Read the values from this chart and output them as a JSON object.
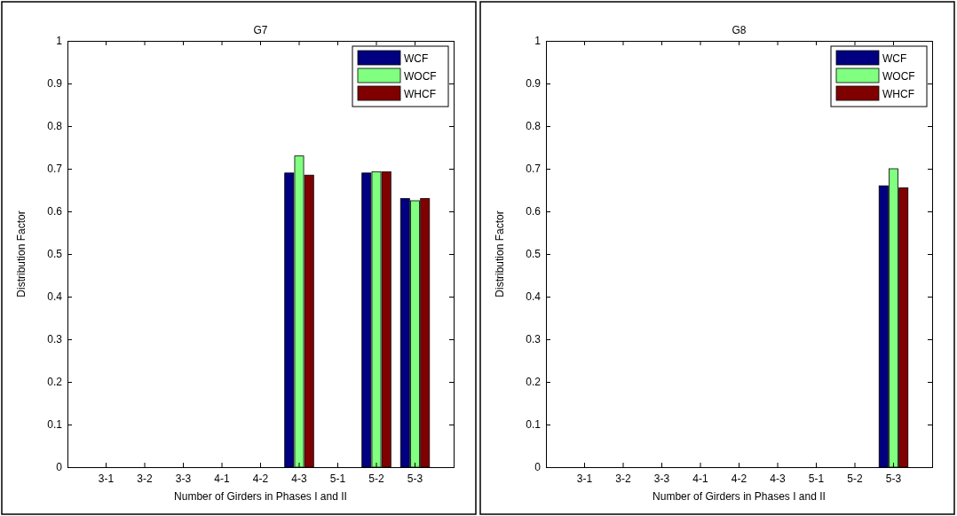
{
  "chart_data": [
    {
      "type": "bar",
      "title": "G7",
      "xlabel": "Number of Girders in Phases I and II",
      "ylabel": "Distribution Factor",
      "categories": [
        "3-1",
        "3-2",
        "3-3",
        "4-1",
        "4-2",
        "4-3",
        "5-1",
        "5-2",
        "5-3"
      ],
      "series": [
        {
          "name": "WCF",
          "color": "#000080",
          "values": [
            null,
            null,
            null,
            null,
            null,
            0.69,
            null,
            0.69,
            0.63
          ]
        },
        {
          "name": "WOCF",
          "color": "#80ff80",
          "values": [
            null,
            null,
            null,
            null,
            null,
            0.73,
            null,
            0.693,
            0.625
          ]
        },
        {
          "name": "WHCF",
          "color": "#800000",
          "values": [
            null,
            null,
            null,
            null,
            null,
            0.685,
            null,
            0.693,
            0.63
          ]
        }
      ],
      "ylim": [
        0,
        1
      ],
      "yticks": [
        0,
        0.1,
        0.2,
        0.3,
        0.4,
        0.5,
        0.6,
        0.7,
        0.8,
        0.9,
        1
      ],
      "legend": "top right",
      "grid": false
    },
    {
      "type": "bar",
      "title": "G8",
      "xlabel": "Number of Girders in Phases I and II",
      "ylabel": "Distribution Factor",
      "categories": [
        "3-1",
        "3-2",
        "3-3",
        "4-1",
        "4-2",
        "4-3",
        "5-1",
        "5-2",
        "5-3"
      ],
      "series": [
        {
          "name": "WCF",
          "color": "#000080",
          "values": [
            null,
            null,
            null,
            null,
            null,
            null,
            null,
            null,
            0.66
          ]
        },
        {
          "name": "WOCF",
          "color": "#80ff80",
          "values": [
            null,
            null,
            null,
            null,
            null,
            null,
            null,
            null,
            0.7
          ]
        },
        {
          "name": "WHCF",
          "color": "#800000",
          "values": [
            null,
            null,
            null,
            null,
            null,
            null,
            null,
            null,
            0.655
          ]
        }
      ],
      "ylim": [
        0,
        1
      ],
      "yticks": [
        0,
        0.1,
        0.2,
        0.3,
        0.4,
        0.5,
        0.6,
        0.7,
        0.8,
        0.9,
        1
      ],
      "legend": "top right",
      "grid": false
    }
  ]
}
